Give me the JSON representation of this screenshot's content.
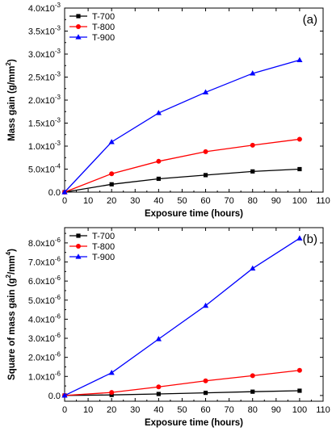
{
  "chart_data": [
    {
      "type": "line",
      "panel_label": "(a)",
      "xlabel": "Exposure time (hours)",
      "ylabel_parts": [
        "Mass gain (g/mm",
        "2",
        ")"
      ],
      "xlim": [
        0,
        110
      ],
      "ylim": [
        0,
        0.004
      ],
      "xticks": [
        "0",
        "10",
        "20",
        "30",
        "40",
        "50",
        "60",
        "70",
        "80",
        "90",
        "100",
        "110"
      ],
      "yticks": [
        {
          "m": "0.0",
          "e": ""
        },
        {
          "m": "5.0x10",
          "e": "-4"
        },
        {
          "m": "1.0x10",
          "e": "-3"
        },
        {
          "m": "1.5x10",
          "e": "-3"
        },
        {
          "m": "2.0x10",
          "e": "-3"
        },
        {
          "m": "2.5x10",
          "e": "-3"
        },
        {
          "m": "3.0x10",
          "e": "-3"
        },
        {
          "m": "3.5x10",
          "e": "-3"
        },
        {
          "m": "4.0x10",
          "e": "-3"
        }
      ],
      "legend_position": "top-left",
      "x": [
        0,
        20,
        40,
        60,
        80,
        100
      ],
      "series": [
        {
          "name": "T-700",
          "color": "#000000",
          "marker": "square",
          "values": [
            0,
            0.00017,
            0.00029,
            0.00037,
            0.00045,
            0.0005
          ]
        },
        {
          "name": "T-800",
          "color": "#ff0000",
          "marker": "circle",
          "values": [
            0,
            0.0004,
            0.00067,
            0.00088,
            0.00102,
            0.00115
          ]
        },
        {
          "name": "T-900",
          "color": "#0000ff",
          "marker": "triangle",
          "values": [
            0,
            0.00109,
            0.00172,
            0.00217,
            0.00258,
            0.00287
          ]
        }
      ]
    },
    {
      "type": "line",
      "panel_label": "(b)",
      "xlabel": "Exposure time (hours)",
      "ylabel_parts": [
        "Square of mass gain (g",
        "2",
        "/mm",
        "4",
        ")"
      ],
      "xlim": [
        0,
        110
      ],
      "ylim": [
        -3e-07,
        8.8e-06
      ],
      "xticks": [
        "0",
        "10",
        "20",
        "30",
        "40",
        "50",
        "60",
        "70",
        "80",
        "90",
        "100",
        "110"
      ],
      "yticks": [
        {
          "m": "0.0",
          "e": ""
        },
        {
          "m": "1.0x10",
          "e": "-6"
        },
        {
          "m": "2.0x10",
          "e": "-6"
        },
        {
          "m": "3.0x10",
          "e": "-6"
        },
        {
          "m": "4.0x10",
          "e": "-6"
        },
        {
          "m": "5.0x10",
          "e": "-6"
        },
        {
          "m": "6.0x10",
          "e": "-6"
        },
        {
          "m": "7.0x10",
          "e": "-6"
        },
        {
          "m": "8.0x10",
          "e": "-6"
        }
      ],
      "legend_position": "top-left",
      "x": [
        0,
        20,
        40,
        60,
        80,
        100
      ],
      "series": [
        {
          "name": "T-700",
          "color": "#000000",
          "marker": "square",
          "values": [
            0,
            3e-08,
            8e-08,
            1.4e-07,
            2e-07,
            2.5e-07
          ]
        },
        {
          "name": "T-800",
          "color": "#ff0000",
          "marker": "circle",
          "values": [
            0,
            1.6e-07,
            4.5e-07,
            7.7e-07,
            1.04e-06,
            1.32e-06
          ]
        },
        {
          "name": "T-900",
          "color": "#0000ff",
          "marker": "triangle",
          "values": [
            0,
            1.19e-06,
            2.96e-06,
            4.71e-06,
            6.66e-06,
            8.24e-06
          ]
        }
      ]
    }
  ]
}
